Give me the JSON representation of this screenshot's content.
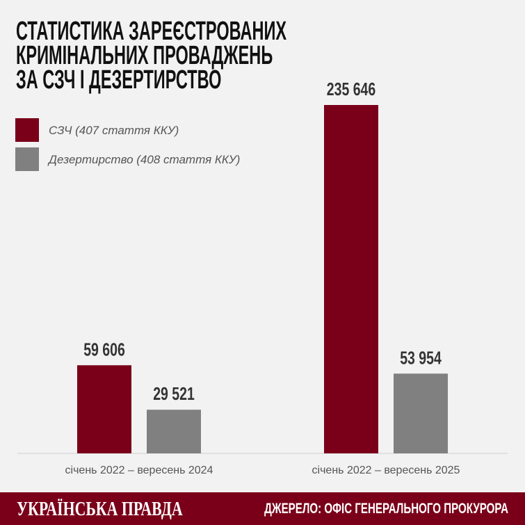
{
  "chart_data": {
    "type": "bar",
    "title": [
      "СТАТИСТИКА ЗАРЕЄСТРОВАНИХ",
      "КРИМІНАЛЬНИХ ПРОВАДЖЕНЬ",
      "ЗА СЗЧ І ДЕЗЕРТИРСТВО"
    ],
    "categories": [
      "січень 2022 – вересень 2024",
      "січень 2022 – вересень 2025"
    ],
    "series": [
      {
        "name": "СЗЧ (407 стаття ККУ)",
        "color": "#7a0019",
        "values": [
          59606,
          235646
        ],
        "value_labels": [
          "59 606",
          "235 646"
        ]
      },
      {
        "name": "Дезертирство (408 стаття ККУ)",
        "color": "#808080",
        "values": [
          29521,
          53954
        ],
        "value_labels": [
          "29 521",
          "53 954"
        ]
      }
    ],
    "legend": "upper left"
  },
  "footer": {
    "brand": "УКРАЇНСЬКА ПРАВДА",
    "source": "ДЖЕРЕЛО: ОФІС ГЕНЕРАЛЬНОГО ПРОКУРОРА",
    "color": "#7a0019"
  }
}
